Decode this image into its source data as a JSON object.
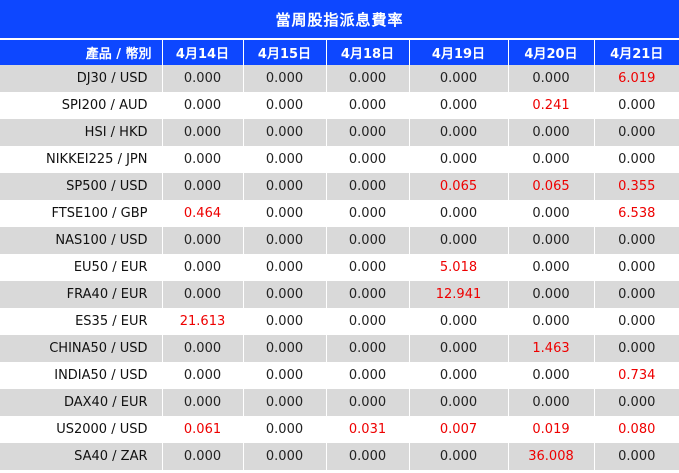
{
  "title": "當周股指派息費率",
  "headers": [
    "產品 / 幣別",
    "4月14日",
    "4月15日",
    "4月18日",
    "4月19日",
    "4月20日",
    "4月21日"
  ],
  "highlight_color": "#ee0000",
  "rows": [
    {
      "product": "DJ30 / USD",
      "values": [
        "0.000",
        "0.000",
        "0.000",
        "0.000",
        "0.000",
        "6.019"
      ]
    },
    {
      "product": "SPI200 / AUD",
      "values": [
        "0.000",
        "0.000",
        "0.000",
        "0.000",
        "0.241",
        "0.000"
      ]
    },
    {
      "product": "HSI / HKD",
      "values": [
        "0.000",
        "0.000",
        "0.000",
        "0.000",
        "0.000",
        "0.000"
      ]
    },
    {
      "product": "NIKKEI225 / JPN",
      "values": [
        "0.000",
        "0.000",
        "0.000",
        "0.000",
        "0.000",
        "0.000"
      ]
    },
    {
      "product": "SP500 / USD",
      "values": [
        "0.000",
        "0.000",
        "0.000",
        "0.065",
        "0.065",
        "0.355"
      ]
    },
    {
      "product": "FTSE100 / GBP",
      "values": [
        "0.464",
        "0.000",
        "0.000",
        "0.000",
        "0.000",
        "6.538"
      ]
    },
    {
      "product": "NAS100 / USD",
      "values": [
        "0.000",
        "0.000",
        "0.000",
        "0.000",
        "0.000",
        "0.000"
      ]
    },
    {
      "product": "EU50 / EUR",
      "values": [
        "0.000",
        "0.000",
        "0.000",
        "5.018",
        "0.000",
        "0.000"
      ]
    },
    {
      "product": "FRA40 / EUR",
      "values": [
        "0.000",
        "0.000",
        "0.000",
        "12.941",
        "0.000",
        "0.000"
      ]
    },
    {
      "product": "ES35 / EUR",
      "values": [
        "21.613",
        "0.000",
        "0.000",
        "0.000",
        "0.000",
        "0.000"
      ]
    },
    {
      "product": "CHINA50 / USD",
      "values": [
        "0.000",
        "0.000",
        "0.000",
        "0.000",
        "1.463",
        "0.000"
      ]
    },
    {
      "product": "INDIA50 / USD",
      "values": [
        "0.000",
        "0.000",
        "0.000",
        "0.000",
        "0.000",
        "0.734"
      ]
    },
    {
      "product": "DAX40 / EUR",
      "values": [
        "0.000",
        "0.000",
        "0.000",
        "0.000",
        "0.000",
        "0.000"
      ]
    },
    {
      "product": "US2000 / USD",
      "values": [
        "0.061",
        "0.000",
        "0.031",
        "0.007",
        "0.019",
        "0.080"
      ]
    },
    {
      "product": "SA40 / ZAR",
      "values": [
        "0.000",
        "0.000",
        "0.000",
        "0.000",
        "36.008",
        "0.000"
      ]
    }
  ]
}
